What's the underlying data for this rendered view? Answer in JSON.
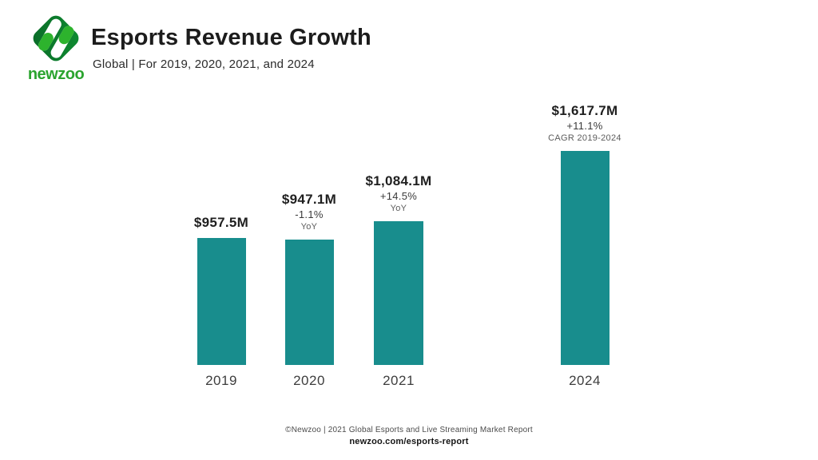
{
  "header": {
    "logo_wordmark": "newzoo",
    "title": "Esports Revenue Growth",
    "subtitle": "Global | For 2019, 2020, 2021, and 2024"
  },
  "chart_data": {
    "type": "bar",
    "title": "Esports Revenue Growth",
    "subtitle": "Global | For 2019, 2020, 2021, and 2024",
    "unit": "USD millions",
    "categories": [
      "2019",
      "2020",
      "2021",
      "2024"
    ],
    "values": [
      957.5,
      947.1,
      1084.1,
      1617.7
    ],
    "bar_color": "#188d8d",
    "grid": "off",
    "axis_labels_visible": false,
    "bars": [
      {
        "year": "2019",
        "value_m": 957.5,
        "value_label": "$957.5M",
        "pct": "",
        "note": ""
      },
      {
        "year": "2020",
        "value_m": 947.1,
        "value_label": "$947.1M",
        "pct": "-1.1%",
        "note": "YoY"
      },
      {
        "year": "2021",
        "value_m": 1084.1,
        "value_label": "$1,084.1M",
        "pct": "+14.5%",
        "note": "YoY"
      },
      {
        "year": "2024",
        "value_m": 1617.7,
        "value_label": "$1,617.7M",
        "pct": "+11.1%",
        "note": "CAGR 2019-2024"
      }
    ]
  },
  "footer": {
    "source": "©Newzoo | 2021 Global Esports and Live Streaming Market Report",
    "link": "newzoo.com/esports-report"
  }
}
